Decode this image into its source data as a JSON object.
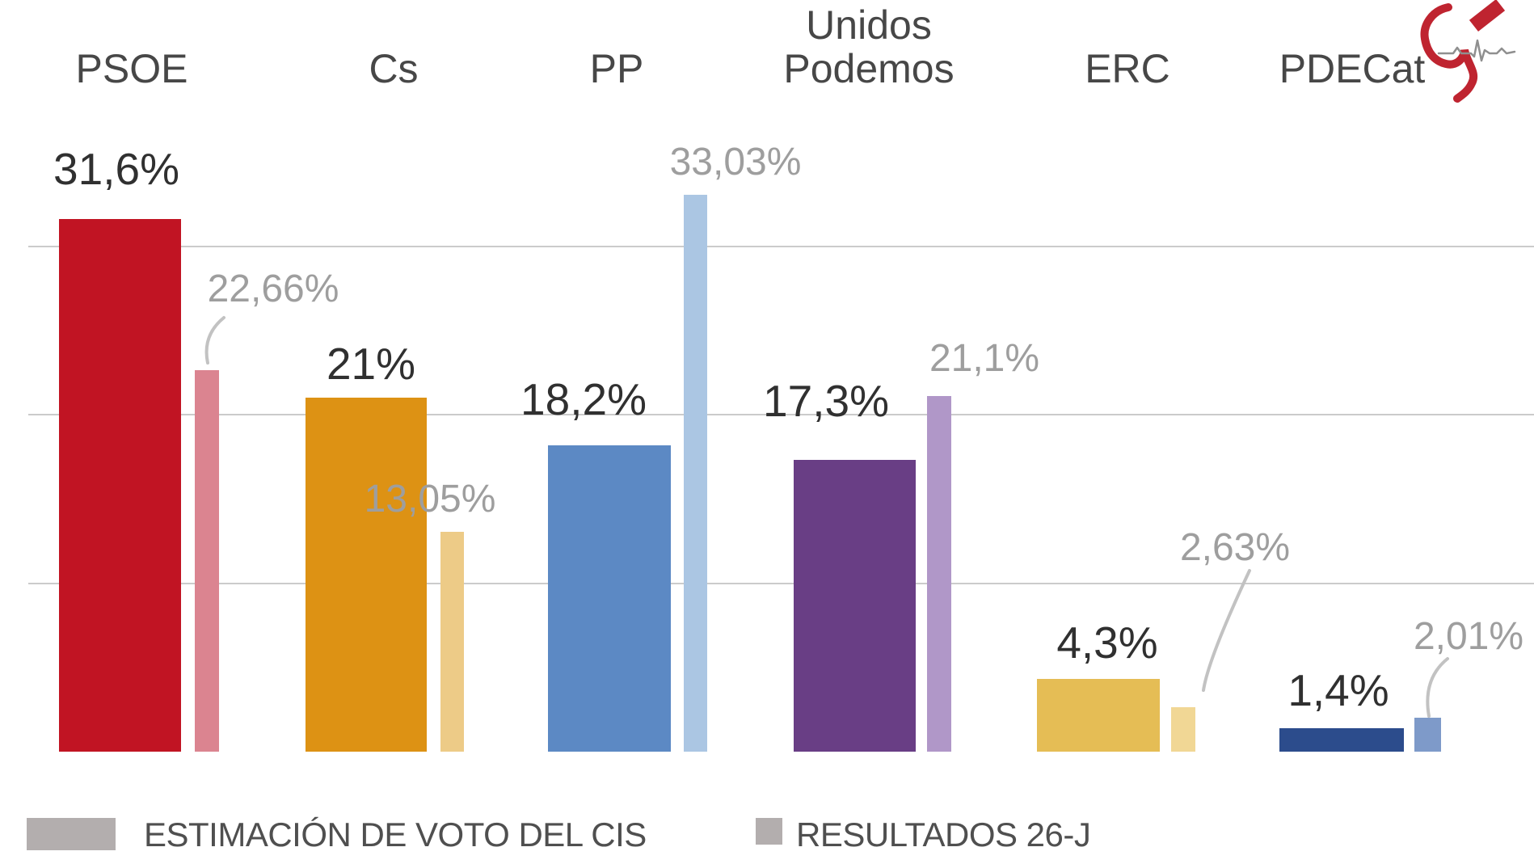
{
  "chart_data": {
    "type": "bar",
    "title": "",
    "xlabel": "",
    "ylabel": "",
    "unit": "%",
    "categories": [
      "PSOE",
      "Cs",
      "PP",
      "Unidos Podemos",
      "ERC",
      "PDECat"
    ],
    "series": [
      {
        "name": "ESTIMACIÓN DE VOTO DEL CIS",
        "values": [
          31.6,
          21,
          18.2,
          17.3,
          4.3,
          1.4
        ],
        "labels": [
          "31,6%",
          "21%",
          "18,2%",
          "17,3%",
          "4,3%",
          "1,4%"
        ],
        "colors": [
          "#c11423",
          "#dd9214",
          "#5c89c4",
          "#693e85",
          "#e5bd55",
          "#2c4c8c"
        ]
      },
      {
        "name": "RESULTADOS 26-J",
        "values": [
          22.66,
          13.05,
          33.03,
          21.1,
          2.63,
          2.01
        ],
        "labels": [
          "22,66%",
          "13,05%",
          "33,03%",
          "21,1%",
          "2,63%",
          "2,01%"
        ],
        "colors": [
          "#db8490",
          "#edcb87",
          "#abc6e3",
          "#b097c8",
          "#f1d795",
          "#7e9ac9"
        ]
      }
    ],
    "ylim": [
      0,
      40
    ],
    "grid": true,
    "gridlines_pct": [
      10,
      20,
      30
    ],
    "legend_position": "bottom",
    "grid_color": "#cbcbcb",
    "connector_color": "#c2c2c2",
    "value_label_colors": {
      "cis": "#303030",
      "results": "#9e9e9e"
    }
  },
  "legend": {
    "swatch_color": "#b3aeae",
    "items": [
      {
        "label": "ESTIMACIÓN DE VOTO DEL CIS"
      },
      {
        "label": "RESULTADOS 26-J"
      }
    ]
  },
  "logo": {
    "red": "#bf2430",
    "gray": "#8f8f8f"
  }
}
